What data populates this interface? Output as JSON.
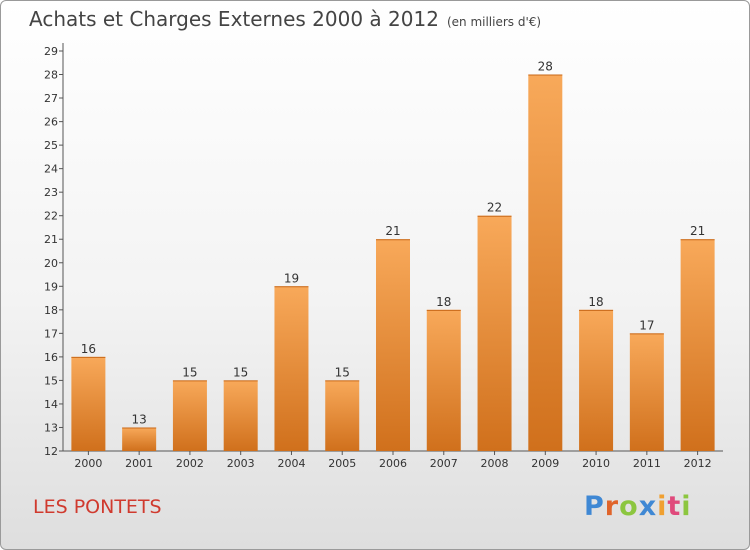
{
  "title": "Achats et Charges Externes 2000 à 2012",
  "unit_note": "(en milliers d'€)",
  "commune": "LES PONTETS",
  "logo_text": "Proxiti",
  "colors": {
    "bar_top": "#f8a95a",
    "bar_bottom": "#d0701c",
    "commune": "#d03a2e"
  },
  "chart_data": {
    "type": "bar",
    "categories": [
      "2000",
      "2001",
      "2002",
      "2003",
      "2004",
      "2005",
      "2006",
      "2007",
      "2008",
      "2009",
      "2010",
      "2011",
      "2012"
    ],
    "values": [
      16,
      13,
      15,
      15,
      19,
      15,
      21,
      18,
      22,
      28,
      18,
      17,
      21
    ],
    "ylim": [
      12,
      29
    ],
    "yticks": [
      12,
      13,
      14,
      15,
      16,
      17,
      18,
      19,
      20,
      21,
      22,
      23,
      24,
      25,
      26,
      27,
      28,
      29
    ],
    "grid": false,
    "data_labels": true
  }
}
